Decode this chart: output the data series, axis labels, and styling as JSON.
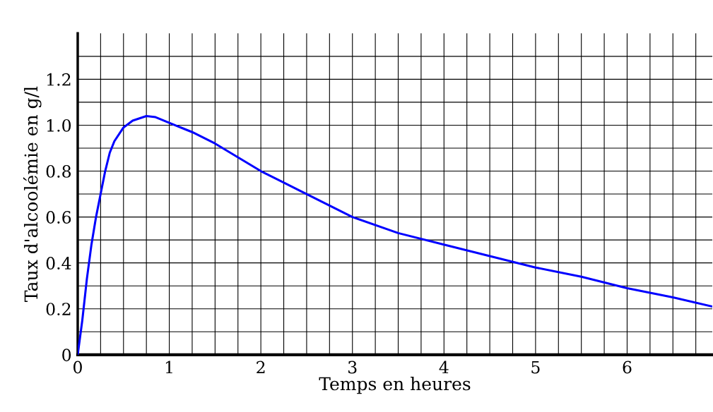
{
  "chart_data": {
    "type": "line",
    "xlabel": "Temps en heures",
    "ylabel": "Taux d'alcoolémie en g/l",
    "x": [
      0,
      0.05,
      0.1,
      0.15,
      0.2,
      0.25,
      0.3,
      0.35,
      0.4,
      0.5,
      0.6,
      0.75,
      0.85,
      1,
      1.25,
      1.5,
      1.75,
      2,
      2.5,
      3,
      3.5,
      4,
      4.5,
      5,
      5.5,
      6,
      6.5,
      6.93
    ],
    "series": [
      {
        "color": "#0000ff",
        "values": [
          0,
          0.15,
          0.33,
          0.48,
          0.6,
          0.7,
          0.8,
          0.88,
          0.93,
          0.99,
          1.02,
          1.04,
          1.035,
          1.01,
          0.97,
          0.92,
          0.86,
          0.8,
          0.7,
          0.6,
          0.53,
          0.48,
          0.43,
          0.38,
          0.34,
          0.29,
          0.25,
          0.21
        ]
      }
    ],
    "xlim": [
      0,
      6.93
    ],
    "ylim": [
      0,
      1.4
    ],
    "xticks": [
      0,
      {
        "value": 0.25,
        "label": null
      },
      {
        "value": 0.5,
        "label": null
      },
      {
        "value": 0.75,
        "label": null
      },
      1,
      {
        "value": 1.25,
        "label": null
      },
      {
        "value": 1.5,
        "label": null
      },
      {
        "value": 1.75,
        "label": null
      },
      2,
      {
        "value": 2.25,
        "label": null
      },
      {
        "value": 2.5,
        "label": null
      },
      {
        "value": 2.75,
        "label": null
      },
      3,
      {
        "value": 3.25,
        "label": null
      },
      {
        "value": 3.5,
        "label": null
      },
      {
        "value": 3.75,
        "label": null
      },
      4,
      {
        "value": 4.25,
        "label": null
      },
      {
        "value": 4.5,
        "label": null
      },
      {
        "value": 4.75,
        "label": null
      },
      5,
      {
        "value": 5.25,
        "label": null
      },
      {
        "value": 5.5,
        "label": null
      },
      {
        "value": 5.75,
        "label": null
      },
      6,
      {
        "value": 6.25,
        "label": null
      },
      {
        "value": 6.5,
        "label": null
      },
      {
        "value": 6.75,
        "label": null
      }
    ],
    "yticks": [
      0,
      {
        "value": 0.1,
        "label": null
      },
      0.2,
      {
        "value": 0.3,
        "label": null
      },
      0.4,
      {
        "value": 0.5,
        "label": null
      },
      0.6,
      {
        "value": 0.7,
        "label": null
      },
      0.8,
      {
        "value": 0.9,
        "label": null
      },
      {
        "value": 1.0,
        "label": "1.0"
      },
      {
        "value": 1.1,
        "label": null
      },
      1.2,
      {
        "value": 1.3,
        "label": null
      }
    ],
    "grid": true,
    "marker": "none",
    "line_style": "solid",
    "legend": false
  }
}
